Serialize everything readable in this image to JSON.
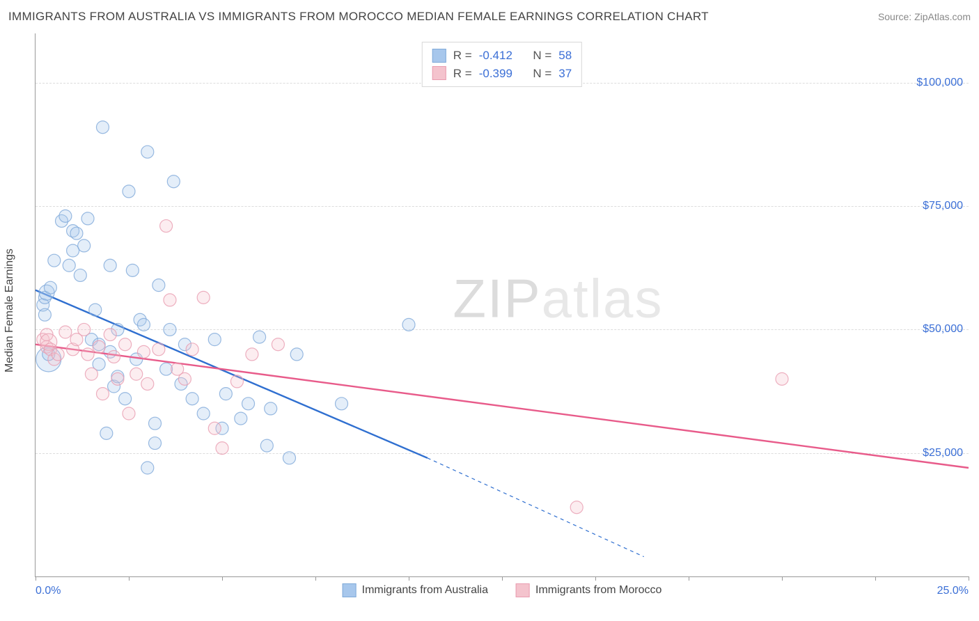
{
  "title": "IMMIGRANTS FROM AUSTRALIA VS IMMIGRANTS FROM MOROCCO MEDIAN FEMALE EARNINGS CORRELATION CHART",
  "source_label": "Source: ZipAtlas.com",
  "watermark": {
    "left": "ZIP",
    "right": "atlas"
  },
  "chart": {
    "type": "scatter",
    "x_axis": {
      "min_pct": 0.0,
      "max_pct": 25.0,
      "min_label": "0.0%",
      "max_label": "25.0%",
      "tick_positions_pct": [
        0,
        2.5,
        5,
        7.5,
        10,
        12.5,
        15,
        17.5,
        20,
        22.5,
        25
      ]
    },
    "y_axis": {
      "title": "Median Female Earnings",
      "min": 0,
      "max": 110000,
      "gridlines": [
        25000,
        50000,
        75000,
        100000
      ],
      "tick_labels": [
        "$25,000",
        "$50,000",
        "$75,000",
        "$100,000"
      ]
    },
    "background_color": "#ffffff",
    "grid_color": "#dcdcdc",
    "axis_color": "#999999",
    "tick_label_color": "#3b6fd6",
    "marker_radius": 9,
    "marker_fill_opacity": 0.3,
    "marker_stroke_opacity": 0.8,
    "marker_stroke_width": 1.2,
    "trend_line_width": 2.4
  },
  "series": [
    {
      "id": "australia",
      "label": "Immigrants from Australia",
      "color_fill": "#a7c7ec",
      "color_stroke": "#7fa9d9",
      "trend_color": "#2f6fd0",
      "stats": {
        "R": "-0.412",
        "N": "58"
      },
      "trend": {
        "x1_pct": 0.0,
        "y1": 58000,
        "x2_pct": 10.5,
        "y2": 24000,
        "extrap_x2_pct": 16.3,
        "extrap_y2": 4000
      },
      "points": [
        {
          "x": 0.2,
          "y": 55000,
          "r": 9
        },
        {
          "x": 0.25,
          "y": 56500,
          "r": 9
        },
        {
          "x": 0.25,
          "y": 53000,
          "r": 9
        },
        {
          "x": 0.3,
          "y": 57500,
          "r": 11
        },
        {
          "x": 0.35,
          "y": 44000,
          "r": 18
        },
        {
          "x": 0.35,
          "y": 45000,
          "r": 9
        },
        {
          "x": 0.4,
          "y": 58500,
          "r": 9
        },
        {
          "x": 0.5,
          "y": 64000,
          "r": 9
        },
        {
          "x": 0.7,
          "y": 72000,
          "r": 9
        },
        {
          "x": 0.8,
          "y": 73000,
          "r": 9
        },
        {
          "x": 0.9,
          "y": 63000,
          "r": 9
        },
        {
          "x": 1.0,
          "y": 70000,
          "r": 9
        },
        {
          "x": 1.0,
          "y": 66000,
          "r": 9
        },
        {
          "x": 1.1,
          "y": 69500,
          "r": 9
        },
        {
          "x": 1.2,
          "y": 61000,
          "r": 9
        },
        {
          "x": 1.3,
          "y": 67000,
          "r": 9
        },
        {
          "x": 1.4,
          "y": 72500,
          "r": 9
        },
        {
          "x": 1.5,
          "y": 48000,
          "r": 9
        },
        {
          "x": 1.6,
          "y": 54000,
          "r": 9
        },
        {
          "x": 1.7,
          "y": 47000,
          "r": 9
        },
        {
          "x": 1.7,
          "y": 43000,
          "r": 9
        },
        {
          "x": 1.8,
          "y": 91000,
          "r": 9
        },
        {
          "x": 1.9,
          "y": 29000,
          "r": 9
        },
        {
          "x": 2.0,
          "y": 63000,
          "r": 9
        },
        {
          "x": 2.0,
          "y": 45500,
          "r": 9
        },
        {
          "x": 2.1,
          "y": 38500,
          "r": 9
        },
        {
          "x": 2.2,
          "y": 50000,
          "r": 9
        },
        {
          "x": 2.2,
          "y": 40500,
          "r": 9
        },
        {
          "x": 2.4,
          "y": 36000,
          "r": 9
        },
        {
          "x": 2.5,
          "y": 78000,
          "r": 9
        },
        {
          "x": 2.6,
          "y": 62000,
          "r": 9
        },
        {
          "x": 2.7,
          "y": 44000,
          "r": 9
        },
        {
          "x": 2.8,
          "y": 52000,
          "r": 9
        },
        {
          "x": 2.9,
          "y": 51000,
          "r": 9
        },
        {
          "x": 3.0,
          "y": 86000,
          "r": 9
        },
        {
          "x": 3.0,
          "y": 22000,
          "r": 9
        },
        {
          "x": 3.2,
          "y": 31000,
          "r": 9
        },
        {
          "x": 3.2,
          "y": 27000,
          "r": 9
        },
        {
          "x": 3.3,
          "y": 59000,
          "r": 9
        },
        {
          "x": 3.5,
          "y": 42000,
          "r": 9
        },
        {
          "x": 3.6,
          "y": 50000,
          "r": 9
        },
        {
          "x": 3.7,
          "y": 80000,
          "r": 9
        },
        {
          "x": 3.9,
          "y": 39000,
          "r": 9
        },
        {
          "x": 4.0,
          "y": 47000,
          "r": 9
        },
        {
          "x": 4.2,
          "y": 36000,
          "r": 9
        },
        {
          "x": 4.5,
          "y": 33000,
          "r": 9
        },
        {
          "x": 4.8,
          "y": 48000,
          "r": 9
        },
        {
          "x": 5.0,
          "y": 30000,
          "r": 9
        },
        {
          "x": 5.1,
          "y": 37000,
          "r": 9
        },
        {
          "x": 5.5,
          "y": 32000,
          "r": 9
        },
        {
          "x": 5.7,
          "y": 35000,
          "r": 9
        },
        {
          "x": 6.0,
          "y": 48500,
          "r": 9
        },
        {
          "x": 6.2,
          "y": 26500,
          "r": 9
        },
        {
          "x": 6.3,
          "y": 34000,
          "r": 9
        },
        {
          "x": 6.8,
          "y": 24000,
          "r": 9
        },
        {
          "x": 7.0,
          "y": 45000,
          "r": 9
        },
        {
          "x": 8.2,
          "y": 35000,
          "r": 9
        },
        {
          "x": 10.0,
          "y": 51000,
          "r": 9
        }
      ]
    },
    {
      "id": "morocco",
      "label": "Immigrants from Morocco",
      "color_fill": "#f4c3cd",
      "color_stroke": "#e99cb0",
      "trend_color": "#e85b8a",
      "stats": {
        "R": "-0.399",
        "N": "37"
      },
      "trend": {
        "x1_pct": 0.0,
        "y1": 47000,
        "x2_pct": 25.0,
        "y2": 22000
      },
      "points": [
        {
          "x": 0.2,
          "y": 48000,
          "r": 9
        },
        {
          "x": 0.3,
          "y": 46500,
          "r": 9
        },
        {
          "x": 0.3,
          "y": 49000,
          "r": 9
        },
        {
          "x": 0.35,
          "y": 47500,
          "r": 12
        },
        {
          "x": 0.4,
          "y": 46000,
          "r": 9
        },
        {
          "x": 0.5,
          "y": 44000,
          "r": 9
        },
        {
          "x": 0.6,
          "y": 45000,
          "r": 9
        },
        {
          "x": 0.8,
          "y": 49500,
          "r": 9
        },
        {
          "x": 1.0,
          "y": 46000,
          "r": 9
        },
        {
          "x": 1.1,
          "y": 48000,
          "r": 9
        },
        {
          "x": 1.3,
          "y": 50000,
          "r": 9
        },
        {
          "x": 1.4,
          "y": 45000,
          "r": 9
        },
        {
          "x": 1.5,
          "y": 41000,
          "r": 9
        },
        {
          "x": 1.7,
          "y": 46500,
          "r": 9
        },
        {
          "x": 1.8,
          "y": 37000,
          "r": 9
        },
        {
          "x": 2.0,
          "y": 49000,
          "r": 9
        },
        {
          "x": 2.1,
          "y": 44500,
          "r": 9
        },
        {
          "x": 2.2,
          "y": 40000,
          "r": 9
        },
        {
          "x": 2.4,
          "y": 47000,
          "r": 9
        },
        {
          "x": 2.5,
          "y": 33000,
          "r": 9
        },
        {
          "x": 2.7,
          "y": 41000,
          "r": 9
        },
        {
          "x": 2.9,
          "y": 45500,
          "r": 9
        },
        {
          "x": 3.0,
          "y": 39000,
          "r": 9
        },
        {
          "x": 3.3,
          "y": 46000,
          "r": 9
        },
        {
          "x": 3.5,
          "y": 71000,
          "r": 9
        },
        {
          "x": 3.6,
          "y": 56000,
          "r": 9
        },
        {
          "x": 3.8,
          "y": 42000,
          "r": 9
        },
        {
          "x": 4.0,
          "y": 40000,
          "r": 9
        },
        {
          "x": 4.2,
          "y": 46000,
          "r": 9
        },
        {
          "x": 4.5,
          "y": 56500,
          "r": 9
        },
        {
          "x": 4.8,
          "y": 30000,
          "r": 9
        },
        {
          "x": 5.0,
          "y": 26000,
          "r": 9
        },
        {
          "x": 5.4,
          "y": 39500,
          "r": 9
        },
        {
          "x": 5.8,
          "y": 45000,
          "r": 9
        },
        {
          "x": 6.5,
          "y": 47000,
          "r": 9
        },
        {
          "x": 14.5,
          "y": 14000,
          "r": 9
        },
        {
          "x": 20.0,
          "y": 40000,
          "r": 9
        }
      ]
    }
  ],
  "stats_box": {
    "labels": {
      "R": "R  =",
      "N": "N  ="
    }
  },
  "legend": {
    "items": [
      {
        "series": "australia",
        "label": "Immigrants from Australia"
      },
      {
        "series": "morocco",
        "label": "Immigrants from Morocco"
      }
    ]
  }
}
